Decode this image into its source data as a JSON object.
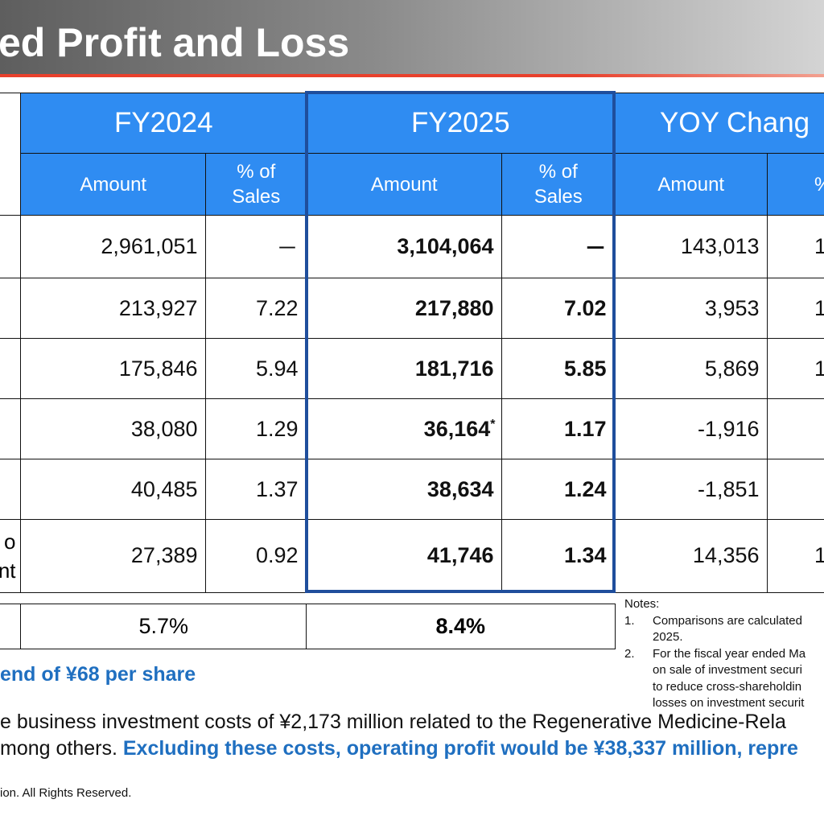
{
  "header": {
    "title": "ed Profit and Loss"
  },
  "table": {
    "groups": [
      "FY2024",
      "FY2025",
      "YOY Chang"
    ],
    "subheaders": [
      "Amount",
      "% of Sales",
      "Amount",
      "% of Sales",
      "Amount",
      "%"
    ],
    "rows": [
      {
        "cells": [
          "2,961,051",
          "－",
          "3,104,064",
          "－",
          "143,013",
          "1"
        ]
      },
      {
        "cells": [
          "213,927",
          "7.22",
          "217,880",
          "7.02",
          "3,953",
          "1"
        ]
      },
      {
        "cells": [
          "175,846",
          "5.94",
          "181,716",
          "5.85",
          "5,869",
          "1"
        ]
      },
      {
        "cells": [
          "38,080",
          "1.29",
          "36,164",
          "1.17",
          "-1,916"
        ],
        "note_mark": "*"
      },
      {
        "cells": [
          "40,485",
          "1.37",
          "38,634",
          "1.24",
          "-1,851"
        ]
      },
      {
        "cells": [
          "27,389",
          "0.92",
          "41,746",
          "1.34",
          "14,356",
          "1"
        ],
        "label": [
          "o",
          "nt"
        ]
      }
    ],
    "summary": [
      "5.7%",
      "8.4%"
    ]
  },
  "notes": {
    "title": "Notes:",
    "items": [
      {
        "num": "1.",
        "lines": [
          "Comparisons are calculated",
          "2025."
        ]
      },
      {
        "num": "2.",
        "lines": [
          "For the fiscal year ended Ma",
          "on sale of investment securi",
          "to reduce cross-shareholdin",
          "losses on investment securit"
        ]
      }
    ]
  },
  "dividend": "end of ¥68 per share",
  "paragraph": {
    "line1": "e business investment costs of ¥2,173 million related to the Regenerative Medicine-Rela",
    "line2_plain": "mong others. ",
    "line2_bold": "Excluding these costs, operating profit would be ¥38,337 million, repre"
  },
  "footer": "ion. All Rights Reserved."
}
